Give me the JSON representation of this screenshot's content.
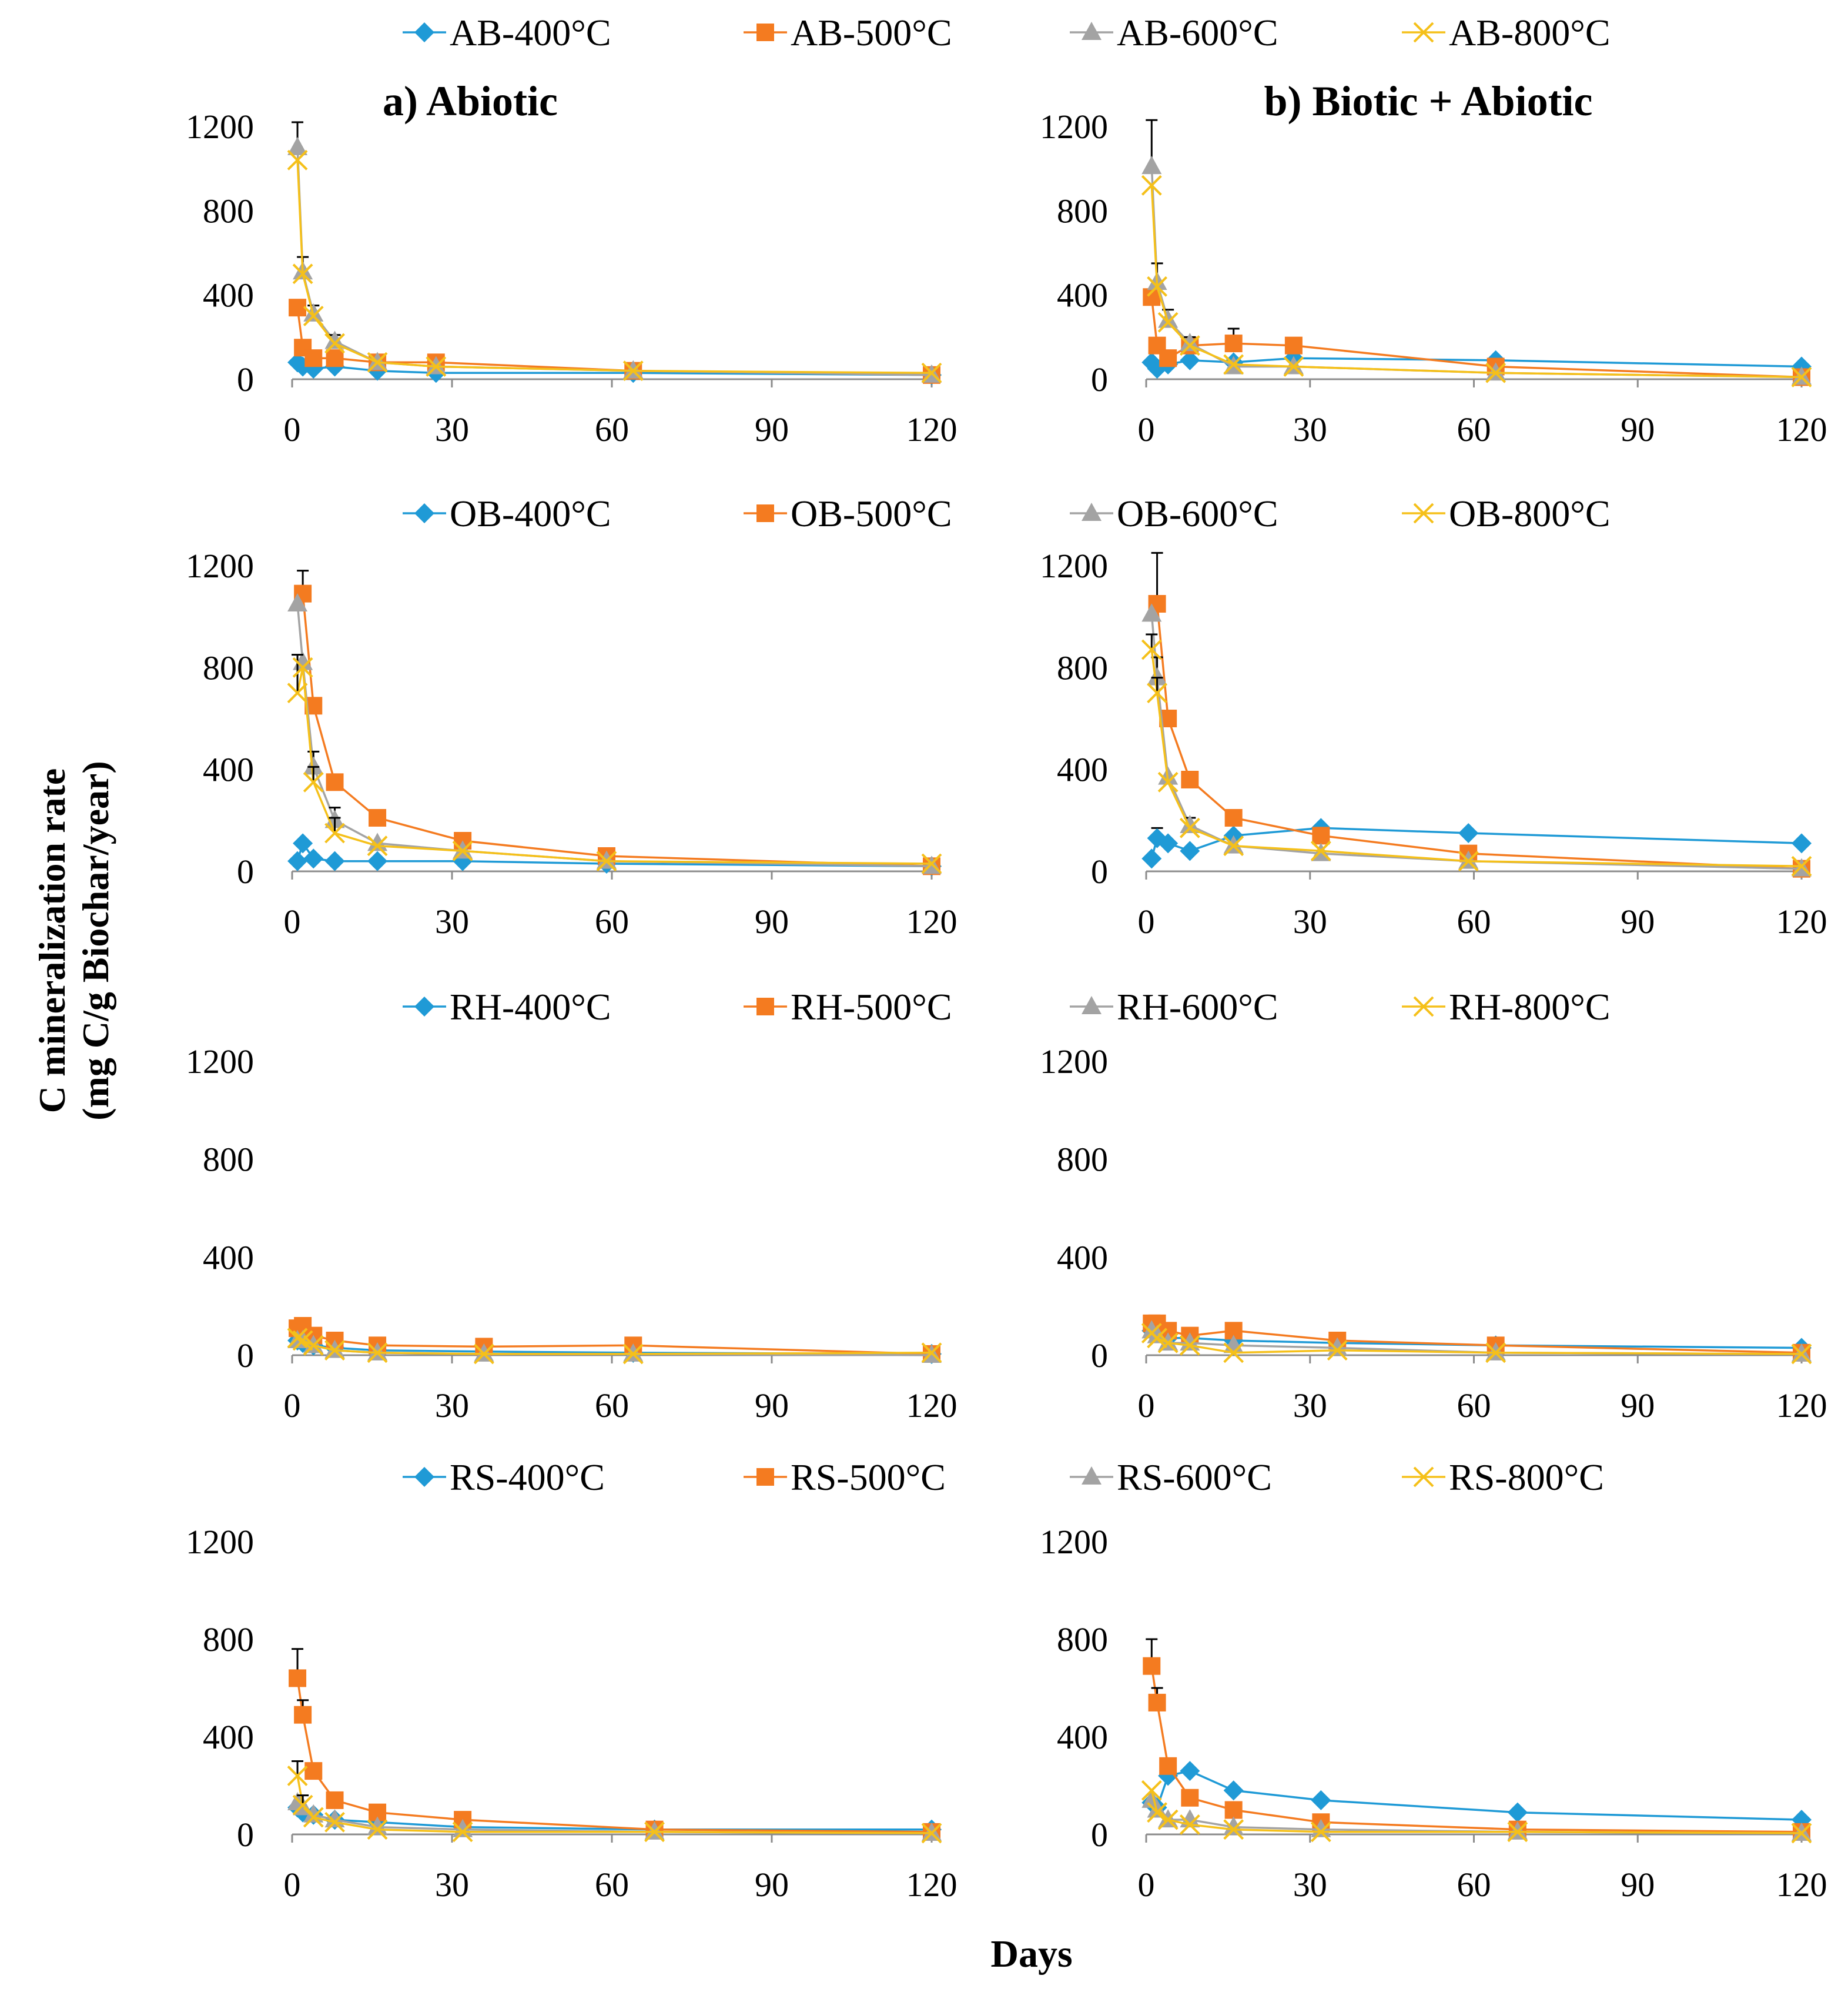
{
  "figure": {
    "panel_titles": [
      "a) Abiotic",
      "b) Biotic + Abiotic"
    ],
    "ylabel_line1": "C mineralization  rate",
    "ylabel_line2": "(mg C/g Biochar/year)",
    "xlabel": "Days"
  },
  "colors": {
    "400": "#1F9AD6",
    "500": "#F47B20",
    "600": "#A3A3A3",
    "800": "#F5C01A"
  },
  "markers": {
    "400": "diamond",
    "500": "square",
    "600": "triangle",
    "800": "x"
  },
  "chart_data": [
    {
      "type": "line",
      "group": "AB",
      "panel": "a) Abiotic",
      "xlim": [
        0,
        120
      ],
      "ylim": [
        0,
        1200
      ],
      "xticks": [
        "0",
        "30",
        "60",
        "90",
        "120"
      ],
      "yticks": [
        "0",
        "400",
        "800",
        "1200"
      ],
      "legend": [
        "AB-400°C",
        "AB-500°C",
        "AB-600°C",
        "AB-800°C"
      ],
      "series": [
        {
          "name": "AB-400°C",
          "temp": "400",
          "x": [
            1,
            2,
            4,
            8,
            16,
            27,
            64,
            120
          ],
          "y": [
            80,
            60,
            50,
            60,
            40,
            30,
            30,
            20
          ]
        },
        {
          "name": "AB-500°C",
          "temp": "500",
          "x": [
            1,
            2,
            4,
            8,
            16,
            27,
            64,
            120
          ],
          "y": [
            340,
            150,
            100,
            100,
            80,
            80,
            40,
            20
          ]
        },
        {
          "name": "AB-600°C",
          "temp": "600",
          "x": [
            1,
            2,
            4,
            8,
            16,
            27,
            64,
            120
          ],
          "y": [
            1100,
            510,
            310,
            180,
            80,
            60,
            40,
            20
          ],
          "err": [
            120,
            70,
            40,
            30,
            0,
            0,
            0,
            0
          ]
        },
        {
          "name": "AB-800°C",
          "temp": "800",
          "x": [
            1,
            2,
            4,
            8,
            16,
            27,
            64,
            120
          ],
          "y": [
            1040,
            500,
            300,
            170,
            80,
            60,
            40,
            30
          ]
        }
      ]
    },
    {
      "type": "line",
      "group": "AB",
      "panel": "b) Biotic + Abiotic",
      "xlim": [
        0,
        120
      ],
      "ylim": [
        0,
        1200
      ],
      "xticks": [
        "0",
        "30",
        "60",
        "90",
        "120"
      ],
      "yticks": [
        "0",
        "400",
        "800",
        "1200"
      ],
      "series": [
        {
          "name": "AB-400°C",
          "temp": "400",
          "x": [
            1,
            2,
            4,
            8,
            16,
            27,
            64,
            120
          ],
          "y": [
            80,
            50,
            70,
            90,
            80,
            100,
            90,
            60
          ]
        },
        {
          "name": "AB-500°C",
          "temp": "500",
          "x": [
            1,
            2,
            4,
            8,
            16,
            27,
            64,
            120
          ],
          "y": [
            390,
            160,
            100,
            160,
            170,
            160,
            60,
            10
          ],
          "err": [
            0,
            0,
            0,
            0,
            70,
            0,
            0,
            0
          ]
        },
        {
          "name": "AB-600°C",
          "temp": "600",
          "x": [
            1,
            2,
            4,
            8,
            16,
            27,
            64,
            120
          ],
          "y": [
            1010,
            460,
            280,
            170,
            60,
            60,
            30,
            10
          ],
          "err": [
            220,
            90,
            50,
            30,
            0,
            0,
            0,
            0
          ]
        },
        {
          "name": "AB-800°C",
          "temp": "800",
          "x": [
            1,
            2,
            4,
            8,
            16,
            27,
            64,
            120
          ],
          "y": [
            920,
            440,
            270,
            160,
            70,
            60,
            30,
            10
          ]
        }
      ]
    },
    {
      "type": "line",
      "group": "OB",
      "panel": "a) Abiotic",
      "xlim": [
        0,
        120
      ],
      "ylim": [
        0,
        1200
      ],
      "xticks": [
        "0",
        "30",
        "60",
        "90",
        "120"
      ],
      "yticks": [
        "0",
        "400",
        "800",
        "1200"
      ],
      "legend": [
        "OB-400°C",
        "OB-500°C",
        "OB-600°C",
        "OB-800°C"
      ],
      "series": [
        {
          "name": "OB-400°C",
          "temp": "400",
          "x": [
            1,
            2,
            4,
            8,
            16,
            32,
            59,
            120
          ],
          "y": [
            40,
            110,
            50,
            40,
            40,
            40,
            30,
            20
          ]
        },
        {
          "name": "OB-500°C",
          "temp": "500",
          "x": [
            2,
            4,
            8,
            16,
            32,
            59,
            120
          ],
          "y": [
            1090,
            650,
            350,
            210,
            120,
            60,
            20
          ],
          "err": [
            90,
            0,
            0,
            0,
            0,
            0,
            0
          ]
        },
        {
          "name": "OB-600°C",
          "temp": "600",
          "x": [
            1,
            2,
            4,
            8,
            16,
            32,
            59,
            120
          ],
          "y": [
            1050,
            820,
            410,
            200,
            110,
            80,
            40,
            20
          ],
          "err": [
            0,
            0,
            60,
            50,
            0,
            0,
            0,
            0
          ]
        },
        {
          "name": "OB-800°C",
          "temp": "800",
          "x": [
            1,
            2,
            4,
            8,
            16,
            32,
            59,
            120
          ],
          "y": [
            700,
            800,
            350,
            150,
            100,
            80,
            40,
            30
          ],
          "err": [
            150,
            0,
            60,
            60,
            0,
            0,
            0,
            0
          ]
        }
      ]
    },
    {
      "type": "line",
      "group": "OB",
      "panel": "b) Biotic + Abiotic",
      "xlim": [
        0,
        120
      ],
      "ylim": [
        0,
        1200
      ],
      "xticks": [
        "0",
        "30",
        "60",
        "90",
        "120"
      ],
      "yticks": [
        "0",
        "400",
        "800",
        "1200"
      ],
      "series": [
        {
          "name": "OB-400°C",
          "temp": "400",
          "x": [
            1,
            2,
            4,
            8,
            16,
            32,
            59,
            120
          ],
          "y": [
            50,
            130,
            110,
            80,
            140,
            170,
            150,
            110
          ],
          "err": [
            0,
            40,
            0,
            0,
            0,
            0,
            0,
            0
          ]
        },
        {
          "name": "OB-500°C",
          "temp": "500",
          "x": [
            2,
            4,
            8,
            16,
            32,
            59,
            120
          ],
          "y": [
            1050,
            600,
            360,
            210,
            140,
            70,
            10
          ],
          "err": [
            200,
            0,
            0,
            0,
            0,
            0,
            0
          ]
        },
        {
          "name": "OB-600°C",
          "temp": "600",
          "x": [
            1,
            2,
            4,
            8,
            16,
            32,
            59,
            120
          ],
          "y": [
            1010,
            760,
            370,
            180,
            100,
            70,
            40,
            10
          ],
          "err": [
            0,
            80,
            0,
            30,
            0,
            0,
            0,
            0
          ]
        },
        {
          "name": "OB-800°C",
          "temp": "800",
          "x": [
            1,
            2,
            4,
            8,
            16,
            32,
            59,
            120
          ],
          "y": [
            870,
            700,
            350,
            170,
            100,
            80,
            40,
            20
          ],
          "err": [
            60,
            60,
            0,
            0,
            0,
            0,
            0,
            0
          ]
        }
      ]
    },
    {
      "type": "line",
      "group": "RH",
      "panel": "a) Abiotic",
      "xlim": [
        0,
        120
      ],
      "ylim": [
        0,
        1200
      ],
      "xticks": [
        "0",
        "30",
        "60",
        "90",
        "120"
      ],
      "yticks": [
        "0",
        "400",
        "800",
        "1200"
      ],
      "legend": [
        "RH-400°C",
        "RH-500°C",
        "RH-600°C",
        "RH-800°C"
      ],
      "series": [
        {
          "name": "RH-400°C",
          "temp": "400",
          "x": [
            1,
            2,
            4,
            8,
            16,
            36,
            64,
            120
          ],
          "y": [
            60,
            50,
            40,
            30,
            20,
            15,
            10,
            5
          ]
        },
        {
          "name": "RH-500°C",
          "temp": "500",
          "x": [
            1,
            2,
            4,
            8,
            16,
            36,
            64,
            120
          ],
          "y": [
            110,
            120,
            80,
            60,
            40,
            35,
            40,
            5
          ]
        },
        {
          "name": "RH-600°C",
          "temp": "600",
          "x": [
            1,
            2,
            4,
            8,
            16,
            36,
            64,
            120
          ],
          "y": [
            60,
            60,
            40,
            20,
            10,
            5,
            5,
            0
          ]
        },
        {
          "name": "RH-800°C",
          "temp": "800",
          "x": [
            1,
            2,
            4,
            8,
            16,
            36,
            64,
            120
          ],
          "y": [
            70,
            60,
            40,
            20,
            10,
            5,
            5,
            10
          ]
        }
      ]
    },
    {
      "type": "line",
      "group": "RH",
      "panel": "b) Biotic + Abiotic",
      "xlim": [
        0,
        120
      ],
      "ylim": [
        0,
        1200
      ],
      "xticks": [
        "0",
        "30",
        "60",
        "90",
        "120"
      ],
      "yticks": [
        "0",
        "400",
        "800",
        "1200"
      ],
      "series": [
        {
          "name": "RH-400°C",
          "temp": "400",
          "x": [
            1,
            2,
            4,
            8,
            16,
            35,
            64,
            120
          ],
          "y": [
            100,
            90,
            70,
            70,
            60,
            50,
            40,
            30
          ]
        },
        {
          "name": "RH-500°C",
          "temp": "500",
          "x": [
            1,
            2,
            4,
            8,
            16,
            35,
            64,
            120
          ],
          "y": [
            130,
            130,
            100,
            80,
            100,
            60,
            40,
            10
          ]
        },
        {
          "name": "RH-600°C",
          "temp": "600",
          "x": [
            1,
            2,
            4,
            8,
            16,
            35,
            64,
            120
          ],
          "y": [
            100,
            80,
            50,
            50,
            40,
            30,
            10,
            5
          ]
        },
        {
          "name": "RH-800°C",
          "temp": "800",
          "x": [
            1,
            2,
            4,
            8,
            16,
            35,
            64,
            120
          ],
          "y": [
            90,
            70,
            50,
            40,
            10,
            20,
            10,
            5
          ]
        }
      ]
    },
    {
      "type": "line",
      "group": "RS",
      "panel": "a) Abiotic",
      "xlim": [
        0,
        120
      ],
      "ylim": [
        0,
        1200
      ],
      "xticks": [
        "0",
        "30",
        "60",
        "90",
        "120"
      ],
      "yticks": [
        "0",
        "400",
        "800",
        "1200"
      ],
      "legend": [
        "RS-400°C",
        "RS-500°C",
        "RS-600°C",
        "RS-800°C"
      ],
      "series": [
        {
          "name": "RS-400°C",
          "temp": "400",
          "x": [
            1,
            2,
            4,
            8,
            16,
            32,
            68,
            120
          ],
          "y": [
            110,
            90,
            80,
            60,
            50,
            30,
            20,
            20
          ]
        },
        {
          "name": "RS-500°C",
          "temp": "500",
          "x": [
            1,
            2,
            4,
            8,
            16,
            32,
            68,
            120
          ],
          "y": [
            640,
            490,
            260,
            140,
            90,
            60,
            20,
            10
          ],
          "err": [
            120,
            60,
            0,
            0,
            0,
            0,
            0,
            0
          ]
        },
        {
          "name": "RS-600°C",
          "temp": "600",
          "x": [
            1,
            2,
            4,
            8,
            16,
            32,
            68,
            120
          ],
          "y": [
            130,
            110,
            80,
            60,
            30,
            20,
            10,
            5
          ]
        },
        {
          "name": "RS-800°C",
          "temp": "800",
          "x": [
            1,
            2,
            4,
            8,
            16,
            32,
            68,
            120
          ],
          "y": [
            240,
            120,
            70,
            50,
            20,
            10,
            10,
            5
          ],
          "err": [
            60,
            40,
            0,
            0,
            0,
            0,
            0,
            0
          ]
        }
      ]
    },
    {
      "type": "line",
      "group": "RS",
      "panel": "b) Biotic + Abiotic",
      "xlim": [
        0,
        120
      ],
      "ylim": [
        0,
        1200
      ],
      "xticks": [
        "0",
        "30",
        "60",
        "90",
        "120"
      ],
      "yticks": [
        "0",
        "400",
        "800",
        "1200"
      ],
      "series": [
        {
          "name": "RS-400°C",
          "temp": "400",
          "x": [
            1,
            2,
            4,
            8,
            16,
            32,
            68,
            120
          ],
          "y": [
            130,
            110,
            240,
            260,
            180,
            140,
            90,
            60
          ]
        },
        {
          "name": "RS-500°C",
          "temp": "500",
          "x": [
            1,
            2,
            4,
            8,
            16,
            32,
            68,
            120
          ],
          "y": [
            690,
            540,
            280,
            150,
            100,
            50,
            20,
            10
          ],
          "err": [
            110,
            60,
            0,
            0,
            0,
            0,
            0,
            0
          ]
        },
        {
          "name": "RS-600°C",
          "temp": "600",
          "x": [
            1,
            2,
            4,
            8,
            16,
            32,
            68,
            120
          ],
          "y": [
            140,
            100,
            60,
            60,
            30,
            20,
            10,
            5
          ]
        },
        {
          "name": "RS-800°C",
          "temp": "800",
          "x": [
            1,
            2,
            4,
            8,
            16,
            32,
            68,
            120
          ],
          "y": [
            180,
            90,
            60,
            40,
            20,
            10,
            10,
            5
          ]
        }
      ]
    }
  ]
}
